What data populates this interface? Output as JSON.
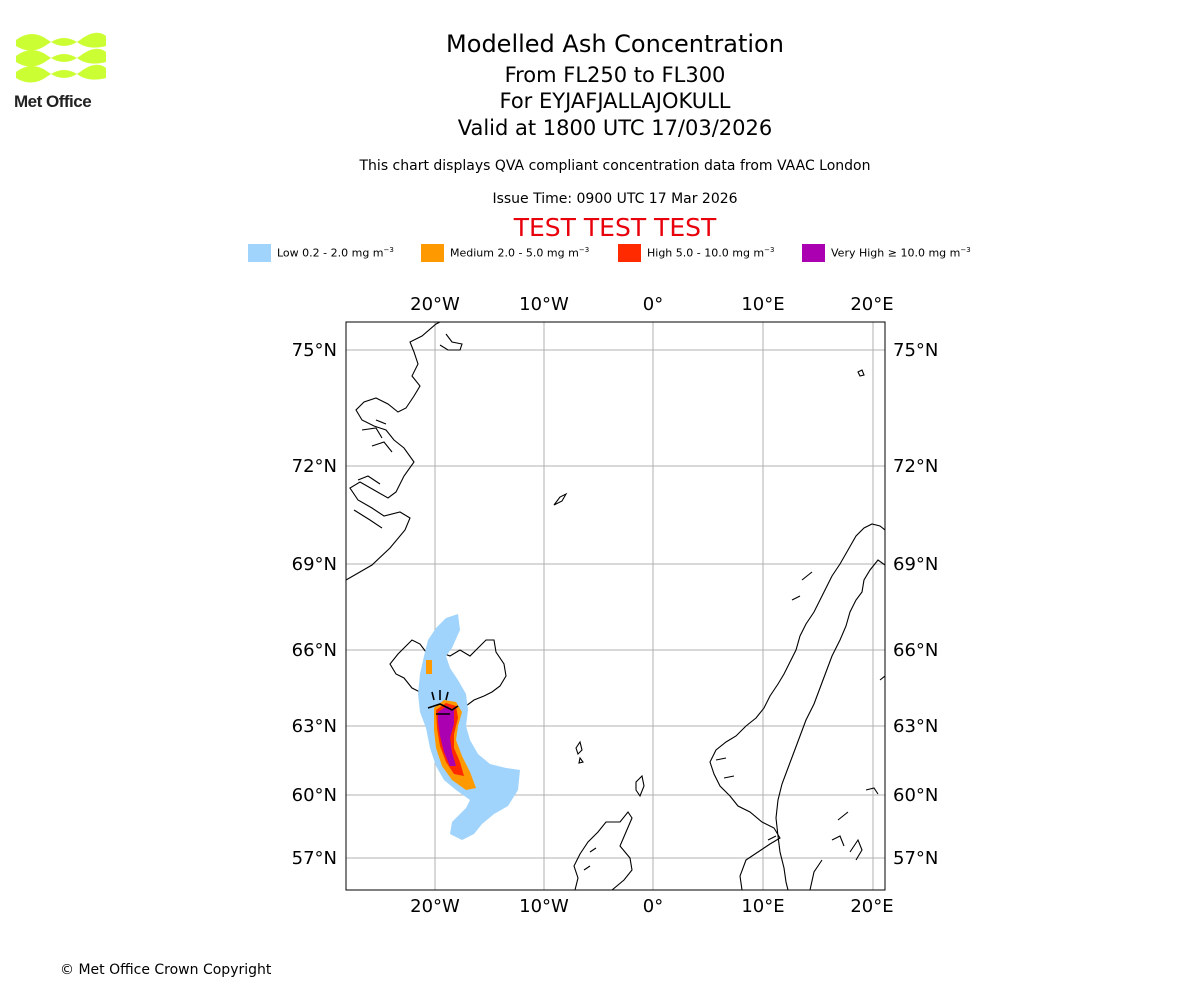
{
  "logo": {
    "text": "Met Office",
    "color": "#ccff33"
  },
  "titles": {
    "main": "Modelled Ash Concentration",
    "levels": "From FL250 to FL300",
    "volcano": "For EYJAFJALLAJOKULL",
    "valid": "Valid at 1800 UTC 17/03/2026",
    "compliance": "This chart displays QVA compliant concentration data from VAAC London",
    "issue": "Issue Time: 0900 UTC 17 Mar 2026",
    "test": "TEST TEST TEST"
  },
  "legend": [
    {
      "label": "Low 0.2 - 2.0 mg m",
      "color": "#a0d4fc"
    },
    {
      "label": "Medium 2.0 - 5.0 mg m",
      "color": "#ff9900"
    },
    {
      "label": "High 5.0 - 10.0 mg m",
      "color": "#ff2a00"
    },
    {
      "label": "Very High ≥ 10.0 mg m",
      "color": "#aa00b2"
    }
  ],
  "legend_unit_exp": "−3",
  "map": {
    "lon_labels": [
      "20°W",
      "10°W",
      "0°",
      "10°E",
      "20°E"
    ],
    "lat_labels": [
      "75°N",
      "72°N",
      "69°N",
      "66°N",
      "63°N",
      "60°N",
      "57°N"
    ]
  },
  "copyright": "© Met Office Crown Copyright"
}
